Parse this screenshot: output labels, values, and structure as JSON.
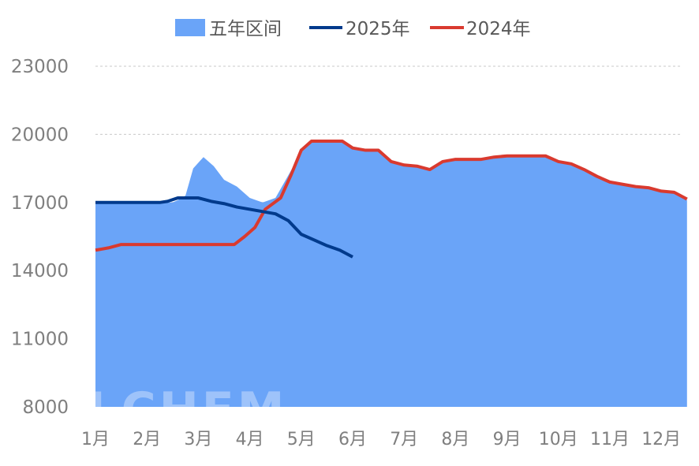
{
  "chart_data": {
    "type": "line",
    "categories": [
      "1月",
      "2月",
      "3月",
      "4月",
      "5月",
      "6月",
      "7月",
      "8月",
      "9月",
      "10月",
      "11月",
      "12月"
    ],
    "ylim": [
      8000,
      23000
    ],
    "yticks": [
      "23000",
      "20000",
      "17000",
      "14000",
      "11000",
      "8000"
    ],
    "ytick_values": [
      23000,
      20000,
      17000,
      14000,
      11000,
      8000
    ],
    "grid": true,
    "legend_position": "top",
    "watermark": "OILCHEM",
    "colors": {
      "band": "#6aa4f8",
      "s2025": "#003a8c",
      "s2024": "#d93a2f",
      "grid": "#c9c9c9"
    },
    "band": {
      "name": "五年区间",
      "upper_x": [
        0,
        0.25,
        0.5,
        0.75,
        1.0,
        1.25,
        1.5,
        1.6,
        1.75,
        1.9,
        2.1,
        2.3,
        2.5,
        2.75,
        3.0,
        3.25,
        3.5,
        3.75,
        4.0,
        4.2,
        4.5,
        4.8,
        5.0,
        5.25,
        5.5,
        5.75,
        6.0,
        6.25,
        6.5,
        6.75,
        7.0,
        7.25,
        7.5,
        7.75,
        8.0,
        8.25,
        8.5,
        8.75,
        9.0,
        9.25,
        9.5,
        9.75,
        10.0,
        10.25,
        10.5,
        10.75,
        11.0,
        11.25,
        11.5
      ],
      "upper_y": [
        17000,
        17000,
        17000,
        17000,
        17000,
        17000,
        17000,
        17100,
        17300,
        18500,
        19000,
        18600,
        18000,
        17700,
        17200,
        17000,
        17200,
        18200,
        19200,
        19700,
        19700,
        19700,
        19400,
        19300,
        19300,
        18800,
        18650,
        18600,
        18450,
        18800,
        18900,
        18900,
        18900,
        19000,
        19050,
        19050,
        19050,
        19050,
        18800,
        18700,
        18450,
        18150,
        17900,
        17800,
        17700,
        17650,
        17500,
        17450,
        17100
      ],
      "lower": 8000
    },
    "series": [
      {
        "name": "2025年",
        "x": [
          0,
          0.25,
          0.5,
          0.75,
          1.0,
          1.25,
          1.4,
          1.6,
          1.75,
          2.0,
          2.25,
          2.5,
          2.75,
          3.0,
          3.25,
          3.5,
          3.75,
          4.0,
          4.25,
          4.5,
          4.75,
          5.0
        ],
        "y": [
          17000,
          17000,
          17000,
          17000,
          17000,
          17000,
          17050,
          17200,
          17200,
          17200,
          17050,
          16950,
          16800,
          16700,
          16600,
          16500,
          16200,
          15600,
          15350,
          15100,
          14900,
          14600
        ]
      },
      {
        "name": "2024年",
        "x": [
          0,
          0.25,
          0.5,
          0.75,
          1.0,
          1.25,
          1.5,
          1.75,
          2.0,
          2.25,
          2.5,
          2.7,
          2.9,
          3.1,
          3.3,
          3.6,
          3.8,
          4.0,
          4.2,
          4.5,
          4.8,
          5.0,
          5.25,
          5.5,
          5.75,
          6.0,
          6.25,
          6.5,
          6.75,
          7.0,
          7.25,
          7.5,
          7.75,
          8.0,
          8.25,
          8.5,
          8.75,
          9.0,
          9.25,
          9.5,
          9.75,
          10.0,
          10.25,
          10.5,
          10.75,
          11.0,
          11.25,
          11.5
        ],
        "y": [
          14900,
          15000,
          15150,
          15150,
          15150,
          15150,
          15150,
          15150,
          15150,
          15150,
          15150,
          15150,
          15500,
          15900,
          16700,
          17200,
          18200,
          19300,
          19700,
          19700,
          19700,
          19400,
          19300,
          19300,
          18800,
          18650,
          18600,
          18450,
          18800,
          18900,
          18900,
          18900,
          19000,
          19050,
          19050,
          19050,
          19050,
          18800,
          18700,
          18450,
          18150,
          17900,
          17800,
          17700,
          17650,
          17500,
          17450,
          17150
        ]
      }
    ]
  }
}
